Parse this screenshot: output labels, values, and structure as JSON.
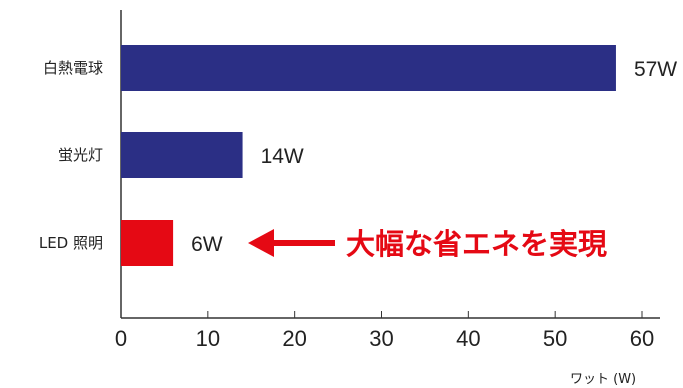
{
  "chart_data": {
    "type": "bar",
    "orientation": "horizontal",
    "categories": [
      "白熱電球",
      "蛍光灯",
      "LED 照明"
    ],
    "values": [
      57,
      14,
      6
    ],
    "value_labels": [
      "57W",
      "14W",
      "6W"
    ],
    "xlabel": "ワット (W)",
    "xlim": [
      0,
      60
    ],
    "xticks": [
      0,
      10,
      20,
      30,
      40,
      50,
      60
    ],
    "grid": false,
    "colors": [
      "#2b2f85",
      "#2b2f85",
      "#e50914"
    ],
    "value_label_colors": [
      "#222222",
      "#222222",
      "#e50914"
    ],
    "annotation": {
      "text": "大幅な省エネを実現",
      "arrow_points_to": "LED 照明",
      "color": "#e50914"
    }
  }
}
